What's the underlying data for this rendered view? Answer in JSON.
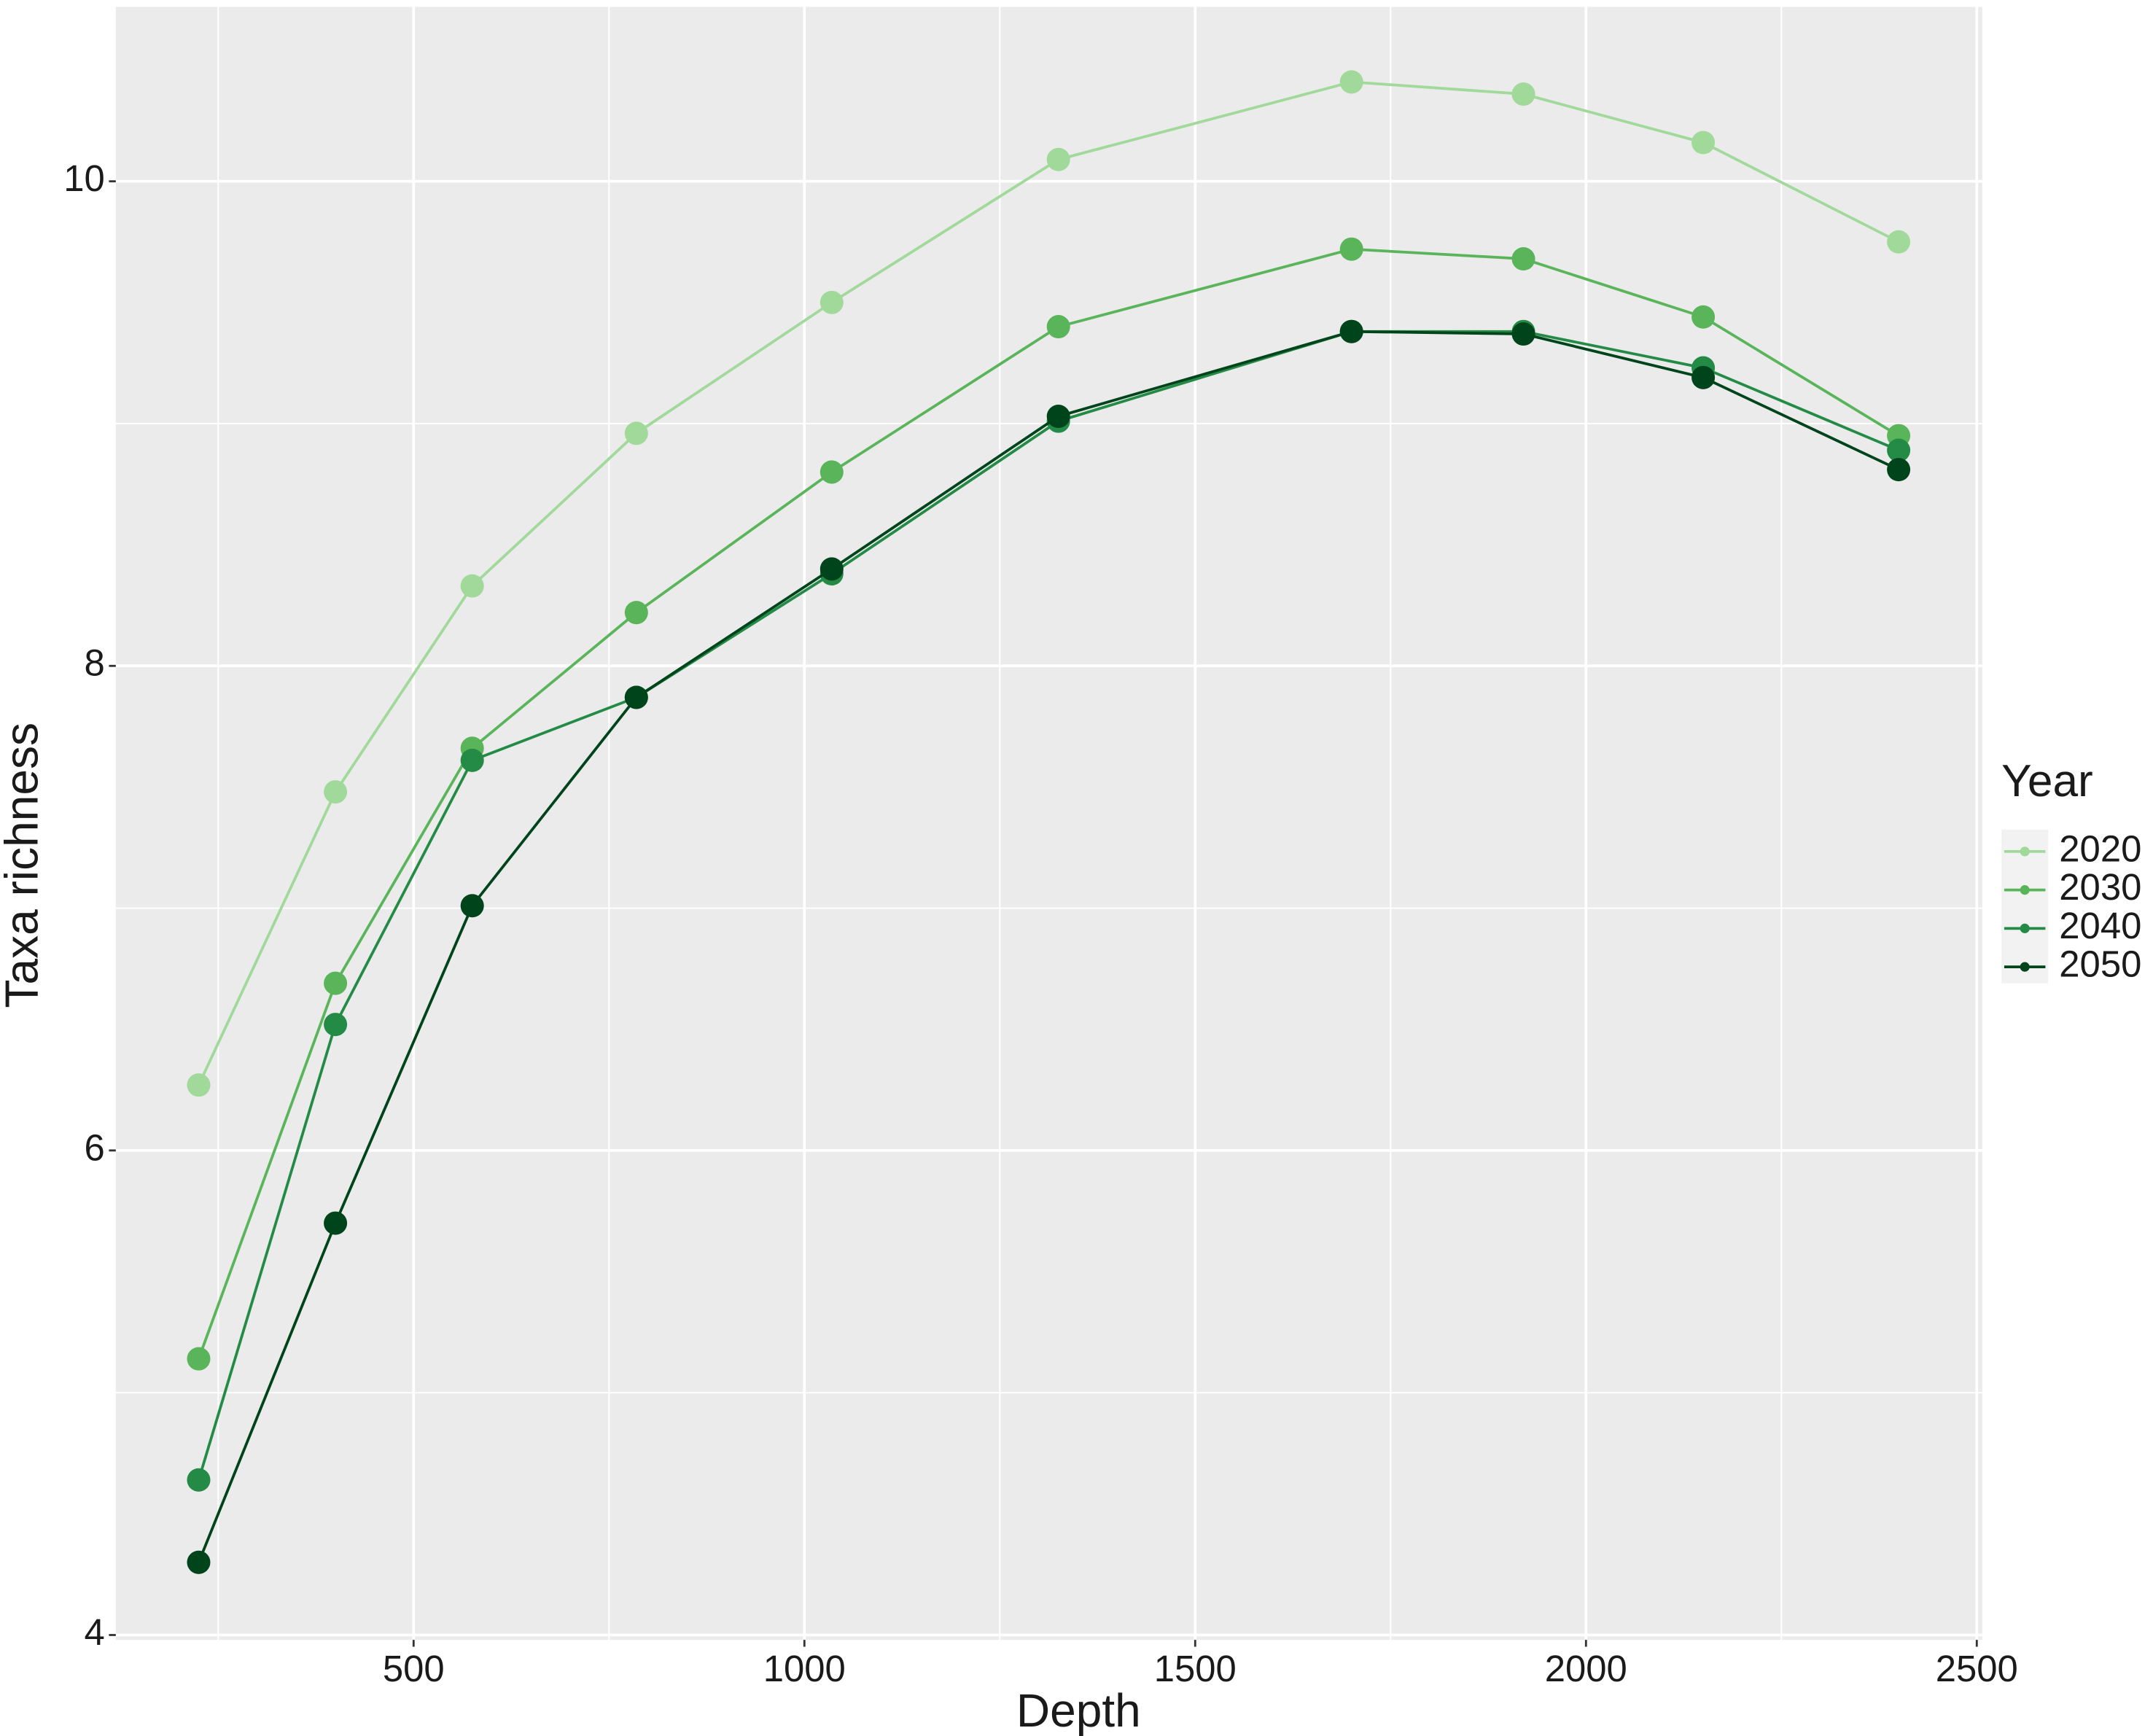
{
  "chart_data": {
    "type": "line",
    "x_label": "Depth",
    "y_label": "Taxa richness",
    "legend_title": "Year",
    "x": [
      225,
      400,
      575,
      785,
      1035,
      1325,
      1700,
      1920,
      2150,
      2400
    ],
    "series": [
      {
        "name": "2020",
        "color": "#a1d99b",
        "values": [
          6.27,
          7.48,
          8.33,
          8.96,
          9.5,
          10.09,
          10.41,
          10.36,
          10.16,
          9.75
        ]
      },
      {
        "name": "2030",
        "color": "#5ab45a",
        "values": [
          5.14,
          6.69,
          7.66,
          8.22,
          8.8,
          9.4,
          9.72,
          9.68,
          9.44,
          8.95
        ]
      },
      {
        "name": "2040",
        "color": "#238b45",
        "values": [
          4.64,
          6.52,
          7.61,
          7.87,
          8.38,
          9.01,
          9.38,
          9.38,
          9.23,
          8.89
        ]
      },
      {
        "name": "2050",
        "color": "#00441b",
        "values": [
          4.3,
          5.7,
          7.01,
          7.87,
          8.4,
          9.03,
          9.38,
          9.37,
          9.19,
          8.81
        ]
      }
    ],
    "xlim": [
      119,
      2507
    ],
    "ylim": [
      3.98,
      10.72
    ],
    "xticks": [
      500,
      1000,
      1500,
      2000,
      2500
    ],
    "yticks": [
      4,
      6,
      8,
      10
    ],
    "minor_xticks": [
      250,
      750,
      1250,
      1750,
      2250
    ],
    "minor_yticks": [
      5,
      7,
      9
    ],
    "grid": true,
    "legend_position": "right"
  }
}
